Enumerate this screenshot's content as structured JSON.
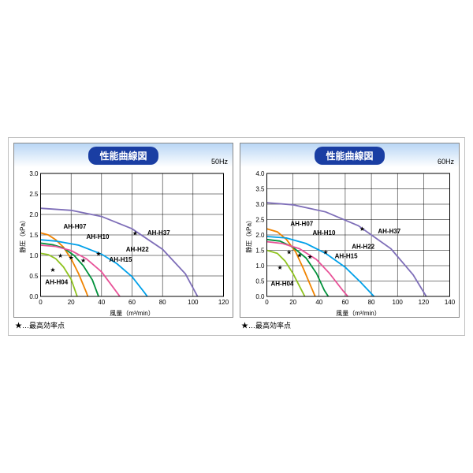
{
  "title": "性能曲線図",
  "legend_note": "★…最高効率点",
  "xlabel": "風量（m³/min）",
  "ylabel": "静圧（kPa）",
  "series_meta": [
    {
      "id": "AH-H04",
      "color": "#8fc31f"
    },
    {
      "id": "AH-H07",
      "color": "#f08300"
    },
    {
      "id": "AH-H10",
      "color": "#00913a"
    },
    {
      "id": "AH-H15",
      "color": "#e85298"
    },
    {
      "id": "AH-H22",
      "color": "#00a0e9"
    },
    {
      "id": "AH-H37",
      "color": "#7e6eb8"
    }
  ],
  "panels": [
    {
      "hz": "50Hz",
      "xlim": [
        0,
        120
      ],
      "xticks": [
        0,
        20,
        40,
        60,
        80,
        100,
        120
      ],
      "ylim": [
        0,
        3.0
      ],
      "yticks": [
        0,
        0.5,
        1.0,
        1.5,
        2.0,
        2.5,
        3.0
      ],
      "curves": {
        "AH-H04": [
          [
            0,
            1.05
          ],
          [
            5,
            1.02
          ],
          [
            10,
            0.92
          ],
          [
            15,
            0.72
          ],
          [
            20,
            0.42
          ],
          [
            24,
            0.0
          ]
        ],
        "AH-H07": [
          [
            0,
            1.55
          ],
          [
            5,
            1.5
          ],
          [
            10,
            1.38
          ],
          [
            15,
            1.2
          ],
          [
            20,
            0.92
          ],
          [
            25,
            0.55
          ],
          [
            30,
            0.1
          ],
          [
            31,
            0.0
          ]
        ],
        "AH-H10": [
          [
            0,
            1.3
          ],
          [
            8,
            1.26
          ],
          [
            15,
            1.18
          ],
          [
            22,
            1.0
          ],
          [
            28,
            0.75
          ],
          [
            34,
            0.4
          ],
          [
            38,
            0.0
          ]
        ],
        "AH-H15": [
          [
            0,
            1.25
          ],
          [
            10,
            1.22
          ],
          [
            20,
            1.12
          ],
          [
            30,
            0.92
          ],
          [
            40,
            0.6
          ],
          [
            48,
            0.2
          ],
          [
            52,
            0.0
          ]
        ],
        "AH-H22": [
          [
            0,
            1.38
          ],
          [
            10,
            1.35
          ],
          [
            25,
            1.25
          ],
          [
            40,
            1.03
          ],
          [
            50,
            0.8
          ],
          [
            60,
            0.48
          ],
          [
            68,
            0.1
          ],
          [
            70,
            0.0
          ]
        ],
        "AH-H37": [
          [
            0,
            2.15
          ],
          [
            20,
            2.1
          ],
          [
            40,
            1.95
          ],
          [
            60,
            1.65
          ],
          [
            80,
            1.15
          ],
          [
            95,
            0.55
          ],
          [
            103,
            0.0
          ]
        ]
      },
      "stars": {
        "AH-H04": [
          8,
          0.65
        ],
        "AH-H07": [
          13,
          1.0
        ],
        "AH-H10": [
          20,
          0.95
        ],
        "AH-H15": [
          28,
          0.88
        ],
        "AH-H22": [
          38,
          1.05
        ],
        "AH-H37": [
          62,
          1.55
        ]
      },
      "labels": {
        "AH-H04": [
          3,
          0.3
        ],
        "AH-H07": [
          15,
          1.65
        ],
        "AH-H10": [
          30,
          1.4
        ],
        "AH-H15": [
          45,
          0.85
        ],
        "AH-H22": [
          56,
          1.1
        ],
        "AH-H37": [
          70,
          1.5
        ]
      }
    },
    {
      "hz": "60Hz",
      "xlim": [
        0,
        140
      ],
      "xticks": [
        0,
        20,
        40,
        60,
        80,
        100,
        120,
        140
      ],
      "ylim": [
        0,
        4.0
      ],
      "yticks": [
        0,
        0.5,
        1.0,
        1.5,
        2.0,
        2.5,
        3.0,
        3.5,
        4.0
      ],
      "curves": {
        "AH-H04": [
          [
            0,
            1.5
          ],
          [
            8,
            1.4
          ],
          [
            14,
            1.15
          ],
          [
            20,
            0.75
          ],
          [
            26,
            0.25
          ],
          [
            29,
            0.0
          ]
        ],
        "AH-H07": [
          [
            0,
            2.2
          ],
          [
            8,
            2.1
          ],
          [
            15,
            1.85
          ],
          [
            22,
            1.45
          ],
          [
            28,
            0.9
          ],
          [
            34,
            0.3
          ],
          [
            37,
            0.0
          ]
        ],
        "AH-H10": [
          [
            0,
            1.85
          ],
          [
            10,
            1.8
          ],
          [
            20,
            1.6
          ],
          [
            30,
            1.25
          ],
          [
            38,
            0.75
          ],
          [
            44,
            0.2
          ],
          [
            47,
            0.0
          ]
        ],
        "AH-H15": [
          [
            0,
            1.78
          ],
          [
            12,
            1.72
          ],
          [
            25,
            1.55
          ],
          [
            38,
            1.2
          ],
          [
            48,
            0.75
          ],
          [
            58,
            0.2
          ],
          [
            62,
            0.0
          ]
        ],
        "AH-H22": [
          [
            0,
            1.95
          ],
          [
            15,
            1.9
          ],
          [
            30,
            1.72
          ],
          [
            45,
            1.4
          ],
          [
            60,
            0.95
          ],
          [
            72,
            0.45
          ],
          [
            82,
            0.0
          ]
        ],
        "AH-H37": [
          [
            0,
            3.05
          ],
          [
            20,
            2.98
          ],
          [
            45,
            2.75
          ],
          [
            70,
            2.3
          ],
          [
            95,
            1.55
          ],
          [
            112,
            0.7
          ],
          [
            122,
            0.0
          ]
        ]
      },
      "stars": {
        "AH-H04": [
          10,
          0.95
        ],
        "AH-H07": [
          17,
          1.45
        ],
        "AH-H10": [
          25,
          1.35
        ],
        "AH-H15": [
          33,
          1.3
        ],
        "AH-H22": [
          45,
          1.45
        ],
        "AH-H37": [
          73,
          2.2
        ]
      },
      "labels": {
        "AH-H04": [
          3,
          0.35
        ],
        "AH-H07": [
          18,
          2.3
        ],
        "AH-H10": [
          35,
          2.0
        ],
        "AH-H15": [
          52,
          1.25
        ],
        "AH-H22": [
          65,
          1.55
        ],
        "AH-H37": [
          85,
          2.05
        ]
      }
    }
  ],
  "grid_color": "#000000",
  "plot_bg": "#ffffff"
}
